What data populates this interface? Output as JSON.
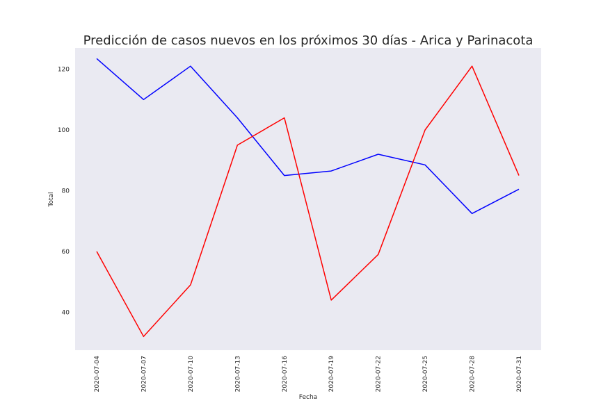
{
  "chart_data": {
    "type": "line",
    "title": "Predicción de casos nuevos en los próximos 30 días - Arica y Parinacota",
    "xlabel": "Fecha",
    "ylabel": "Total",
    "x": [
      "2020-07-04",
      "2020-07-07",
      "2020-07-10",
      "2020-07-13",
      "2020-07-16",
      "2020-07-19",
      "2020-07-22",
      "2020-07-25",
      "2020-07-28",
      "2020-07-31"
    ],
    "ylim": [
      27.5,
      127
    ],
    "yticks": [
      40,
      60,
      80,
      100,
      120
    ],
    "grid": false,
    "legend": "none",
    "background": "#eaeaf2",
    "series": [
      {
        "color": "#0000ff",
        "values": [
          123.5,
          110,
          121,
          104,
          85,
          86.5,
          92,
          88.5,
          72.5,
          80.5
        ]
      },
      {
        "color": "#ff0000",
        "values": [
          60,
          32,
          49,
          95,
          104,
          44,
          59,
          100,
          121,
          85
        ]
      }
    ]
  }
}
